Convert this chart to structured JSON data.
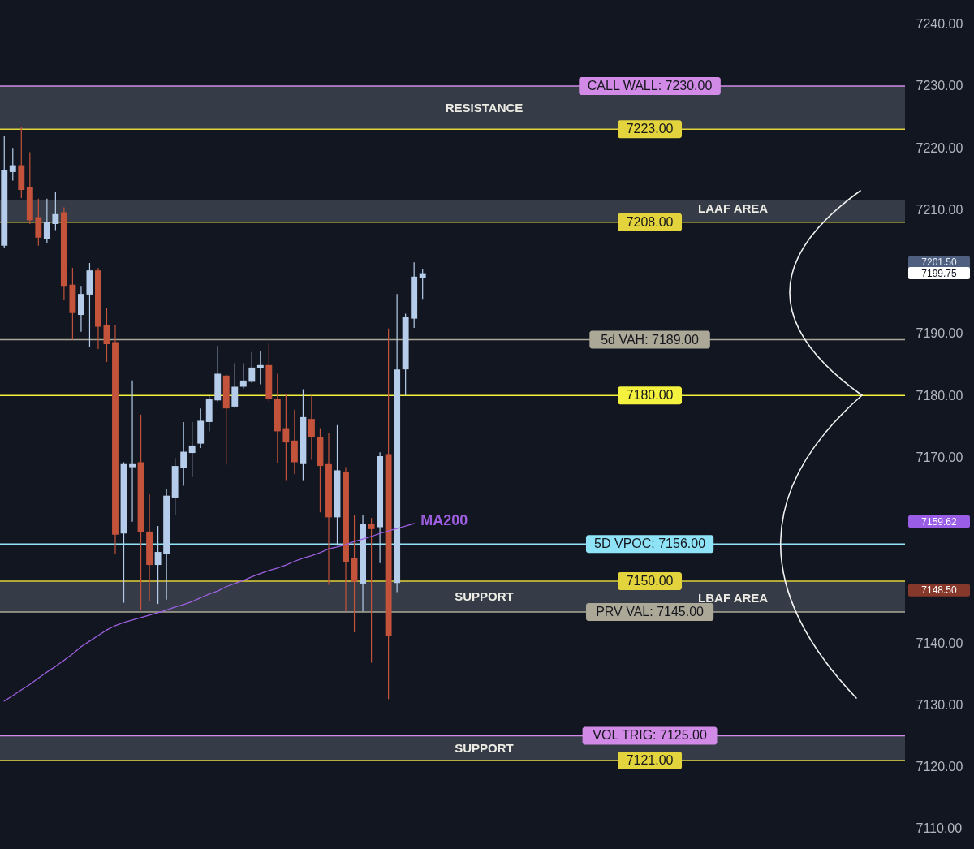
{
  "chart_data": {
    "type": "candlestick",
    "categories": [
      null,
      null,
      null,
      null,
      null,
      null,
      null,
      null,
      null,
      null,
      null,
      null,
      null,
      null,
      null,
      null,
      null,
      null,
      null,
      null,
      null,
      null,
      null,
      null,
      null,
      null,
      null,
      null,
      null,
      null,
      null,
      null,
      null,
      null,
      null,
      null,
      null,
      null,
      null,
      null,
      null,
      null,
      null,
      null,
      null,
      null,
      null,
      null,
      null,
      null,
      null,
      null,
      null,
      null,
      null,
      null,
      null,
      null,
      null,
      null,
      null,
      null,
      null,
      null,
      null,
      null,
      null,
      null,
      null,
      null,
      null,
      null,
      null,
      null,
      null,
      null,
      null,
      null,
      null,
      null,
      null,
      null,
      null,
      null,
      null,
      null,
      null,
      null,
      null,
      null,
      null,
      null,
      null,
      null,
      null,
      null,
      null,
      null,
      null,
      null,
      null,
      null,
      null,
      null,
      null,
      null
    ],
    "ohlc": [
      [
        7204.2,
        7221.9,
        7203.8,
        7216.4
      ],
      [
        7216.1,
        7220.0,
        7214.7,
        7217.2
      ],
      [
        7217.2,
        7223.3,
        7211.9,
        7213.2
      ],
      [
        7213.7,
        7219.3,
        7207.7,
        7208.3
      ],
      [
        7208.8,
        7211.8,
        7204.2,
        7205.5
      ],
      [
        7205.3,
        7211.8,
        7204.6,
        7208.0
      ],
      [
        7207.7,
        7212.9,
        7206.7,
        7209.3
      ],
      [
        7209.6,
        7210.4,
        7195.5,
        7197.7
      ],
      [
        7197.9,
        7200.6,
        7189.0,
        7193.3
      ],
      [
        7193.0,
        7197.7,
        7190.3,
        7196.4
      ],
      [
        7196.3,
        7201.4,
        7187.9,
        7200.2
      ],
      [
        7200.2,
        7200.6,
        7187.5,
        7191.1
      ],
      [
        7191.4,
        7194.1,
        7185.4,
        7188.3
      ],
      [
        7188.6,
        7191.3,
        7154.3,
        7157.5
      ],
      [
        7157.7,
        7169.2,
        7146.5,
        7168.9
      ],
      [
        7168.4,
        7182.4,
        7159.6,
        7168.9
      ],
      [
        7169.2,
        7176.9,
        7145.3,
        7158.0
      ],
      [
        7158.0,
        7164.0,
        7146.8,
        7152.6
      ],
      [
        7152.6,
        7158.9,
        7146.3,
        7154.7
      ],
      [
        7154.4,
        7164.8,
        7147.0,
        7163.8
      ],
      [
        7163.5,
        7169.9,
        7160.6,
        7168.6
      ],
      [
        7168.3,
        7175.7,
        7165.4,
        7170.9
      ],
      [
        7170.7,
        7175.7,
        7166.8,
        7171.9
      ],
      [
        7172.2,
        7177.9,
        7171.5,
        7175.9
      ],
      [
        7175.7,
        7179.9,
        7174.2,
        7179.4
      ],
      [
        7179.2,
        7188.0,
        7179.0,
        7183.5
      ],
      [
        7183.2,
        7183.4,
        7168.8,
        7177.9
      ],
      [
        7178.2,
        7185.2,
        7178.0,
        7181.4
      ],
      [
        7181.4,
        7185.2,
        7181.1,
        7182.4
      ],
      [
        7182.2,
        7187.0,
        7182.0,
        7184.5
      ],
      [
        7184.4,
        7187.2,
        7181.8,
        7184.9
      ],
      [
        7184.9,
        7188.5,
        7179.0,
        7179.4
      ],
      [
        7179.4,
        7183.5,
        7169.1,
        7174.2
      ],
      [
        7174.7,
        7180.2,
        7166.3,
        7172.4
      ],
      [
        7172.7,
        7177.7,
        7167.3,
        7169.2
      ],
      [
        7168.9,
        7181.0,
        7166.3,
        7176.5
      ],
      [
        7176.2,
        7180.0,
        7169.6,
        7173.2
      ],
      [
        7173.2,
        7174.7,
        7161.1,
        7168.6
      ],
      [
        7168.9,
        7174.0,
        7149.4,
        7160.3
      ],
      [
        7160.3,
        7175.2,
        7155.7,
        7167.9
      ],
      [
        7167.7,
        7168.4,
        7145.1,
        7153.1
      ],
      [
        7153.7,
        7160.6,
        7141.7,
        7149.9
      ],
      [
        7149.6,
        7160.6,
        7145.1,
        7159.2
      ],
      [
        7159.2,
        7160.2,
        7136.8,
        7158.4
      ],
      [
        7158.7,
        7170.8,
        7152.9,
        7170.2
      ],
      [
        7170.5,
        7190.8,
        7130.9,
        7141.1
      ],
      [
        7149.7,
        7196.4,
        7148.2,
        7184.2
      ],
      [
        7184.2,
        7193.2,
        7180.0,
        7192.7
      ],
      [
        7192.4,
        7201.5,
        7190.9,
        7199.2
      ],
      [
        7199.0,
        7200.4,
        7195.6,
        7199.75
      ],
      null,
      null,
      null,
      null,
      null,
      null,
      null,
      null,
      null,
      null,
      null,
      null,
      null,
      null,
      null,
      null,
      null,
      null,
      null,
      null,
      null,
      null,
      null,
      null,
      null,
      null,
      null,
      null,
      null,
      null,
      null,
      null,
      null,
      null,
      null,
      null,
      null,
      null,
      null,
      null,
      null,
      null,
      null,
      null,
      null,
      null,
      null,
      null,
      null,
      null,
      null,
      null,
      null,
      null,
      null,
      null
    ],
    "colors": [
      "#b5cdea",
      "#b5cdea",
      "#c4533b",
      "#c4533b",
      "#c4533b",
      "#b5cdea",
      "#b5cdea",
      "#c4533b",
      "#c4533b",
      "#b5cdea",
      "#b5cdea",
      "#c4533b",
      "#c4533b",
      "#c4533b",
      "#b5cdea",
      "#b5cdea",
      "#c4533b",
      "#c4533b",
      "#b5cdea",
      "#b5cdea",
      "#b5cdea",
      "#b5cdea",
      "#b5cdea",
      "#b5cdea",
      "#b5cdea",
      "#b5cdea",
      "#c4533b",
      "#b5cdea",
      "#b5cdea",
      "#b5cdea",
      "#b5cdea",
      "#c4533b",
      "#c4533b",
      "#c4533b",
      "#c4533b",
      "#b5cdea",
      "#c4533b",
      "#c4533b",
      "#c4533b",
      "#b5cdea",
      "#c4533b",
      "#c4533b",
      "#b5cdea",
      "#c4533b",
      "#b5cdea",
      "#c4533b",
      "#b5cdea",
      "#b5cdea",
      "#b5cdea",
      "#b5cdea",
      null,
      null,
      null,
      null,
      null,
      null,
      null,
      null,
      null,
      null,
      null,
      null,
      null,
      null,
      null,
      null,
      null,
      null,
      null,
      null,
      null,
      null,
      null,
      null,
      null,
      null,
      null,
      null,
      null,
      null,
      null,
      null,
      null,
      null,
      null,
      null,
      null,
      null,
      null,
      null,
      null,
      null,
      null,
      null,
      null,
      null,
      null,
      null,
      null,
      null,
      null,
      null,
      null,
      null,
      null,
      null
    ],
    "series": [
      {
        "type": "line",
        "name": "MA200",
        "color": "#9d5fe0",
        "values": [
          7130.6,
          7131.5,
          7132.4,
          7133.3,
          7134.3,
          7135.3,
          7136.2,
          7137.2,
          7138.2,
          7139.4,
          7140.3,
          7141.2,
          7142.1,
          7142.8,
          7143.3,
          7143.7,
          7144.1,
          7144.5,
          7144.9,
          7145.3,
          7145.8,
          7146.2,
          7146.7,
          7147.3,
          7147.9,
          7148.4,
          7149.1,
          7149.6,
          7150.1,
          7150.7,
          7151.2,
          7151.7,
          7152.1,
          7152.6,
          7153.2,
          7153.7,
          7154.1,
          7154.6,
          7155.2,
          7155.5,
          7155.9,
          7156.4,
          7156.8,
          7157.2,
          7157.7,
          7158.1,
          7158.5,
          7158.9,
          7159.3,
          null,
          null,
          null,
          null,
          null,
          null,
          null,
          null,
          null,
          null,
          null,
          null,
          null,
          null,
          null,
          null,
          null,
          null,
          null,
          null,
          null,
          null,
          null,
          null,
          null,
          null,
          null,
          null,
          null,
          null,
          null,
          null,
          null,
          null,
          null,
          null,
          null,
          null,
          null,
          null,
          null,
          null,
          null,
          null,
          null,
          null,
          null,
          null,
          null,
          null,
          null,
          null,
          null,
          null,
          null,
          null,
          null
        ]
      }
    ],
    "ylim": [
      7106.7,
      7243.9
    ],
    "yticks": [
      {
        "value": 7110,
        "label": "7110.00"
      },
      {
        "value": 7120,
        "label": "7120.00"
      },
      {
        "value": 7130,
        "label": "7130.00"
      },
      {
        "value": 7140,
        "label": "7140.00"
      },
      {
        "value": 7150,
        "label": null
      },
      {
        "value": 7170,
        "label": "7170.00"
      },
      {
        "value": 7180,
        "label": "7180.00"
      },
      {
        "value": 7190,
        "label": "7190.00"
      },
      {
        "value": 7210,
        "label": "7210.00"
      },
      {
        "value": 7220,
        "label": "7220.00"
      },
      {
        "value": 7230,
        "label": "7230.00"
      },
      {
        "value": 7240,
        "label": "7240.00"
      }
    ],
    "y2lim": [
      7106.7,
      7243.9
    ],
    "y2ticks": [
      {
        "value": 7201.5,
        "label": "7201.50"
      },
      {
        "value": 7199.75,
        "label": "7199.75"
      },
      {
        "value": 7159.62,
        "label": "7159.62"
      },
      {
        "value": 7148.5,
        "label": "7148.50"
      }
    ],
    "tick_labels": "y",
    "bands": [
      {
        "axis": "y",
        "from": 7223,
        "to": 7230,
        "label": "RESISTANCE",
        "color": "#353c47"
      },
      {
        "axis": "y",
        "from": 7208,
        "to": 7211.5,
        "color": "#353c47"
      },
      {
        "axis": "y",
        "from": 7145,
        "to": 7150,
        "label": "SUPPORT",
        "color": "#353c47"
      },
      {
        "axis": "y",
        "from": 7121,
        "to": 7125,
        "label": "SUPPORT",
        "color": "#353c47"
      }
    ],
    "ref_lines": [
      {
        "axis": "y",
        "value": 7230,
        "label": "CALL WALL: 7230.00",
        "color": "#d18ae6"
      },
      {
        "axis": "y",
        "value": 7223,
        "label": "7223.00",
        "color": "#e3d33c"
      },
      {
        "axis": "y",
        "value": 7208,
        "label": "7208.00",
        "color": "#e3d33c"
      },
      {
        "axis": "y",
        "value": 7189,
        "label": "5d VAH: 7189.00",
        "color": "#aba898"
      },
      {
        "axis": "y",
        "value": 7180,
        "label": "7180.00",
        "color": "#f4f23e"
      },
      {
        "axis": "y",
        "value": 7156,
        "label": "5D VPOC: 7156.00",
        "color": "#8fe3f7"
      },
      {
        "axis": "y",
        "value": 7150,
        "label": "7150.00",
        "color": "#e3d33c"
      },
      {
        "axis": "y",
        "value": 7145,
        "label": "PRV VAL: 7145.00",
        "color": "#aba898"
      },
      {
        "axis": "y",
        "value": 7125,
        "label": "VOL TRIG: 7125.00",
        "color": "#d18ae6"
      },
      {
        "axis": "y",
        "value": 7121,
        "label": "7121.00",
        "color": "#e3d33c"
      }
    ],
    "annotations": [
      {
        "text": "LAAF AREA",
        "y": 7208
      },
      {
        "text": "LBAF AREA",
        "y": 7145
      }
    ]
  }
}
